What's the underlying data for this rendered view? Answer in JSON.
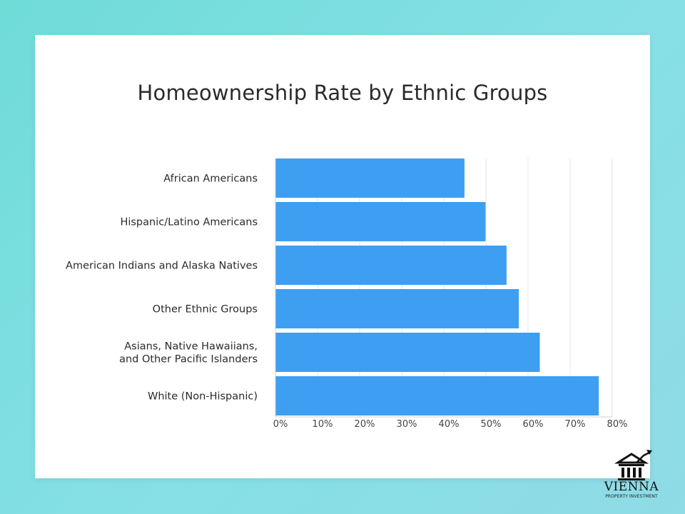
{
  "chart_data": {
    "type": "bar",
    "orientation": "horizontal",
    "title": "Homeownership Rate by Ethnic Groups",
    "xlabel": "",
    "ylabel": "",
    "xlim": [
      0,
      80
    ],
    "x_ticks": [
      "0%",
      "10%",
      "20%",
      "30%",
      "40%",
      "50%",
      "60%",
      "70%",
      "80%"
    ],
    "grid": true,
    "categories": [
      [
        "African Americans"
      ],
      [
        "Hispanic/Latino Americans"
      ],
      [
        "American Indians and Alaska Natives"
      ],
      [
        "Other Ethnic Groups"
      ],
      [
        "Asians, Native Hawaiians,",
        "and Other Pacific Islanders"
      ],
      [
        "White (Non-Hispanic)"
      ]
    ],
    "values": [
      44.9,
      49.9,
      54.9,
      57.8,
      62.8,
      76.8
    ],
    "bar_color": "#3d9ef2"
  },
  "branding": {
    "name": "VIENNA",
    "tagline": "PROPERTY INVESTMENT"
  }
}
